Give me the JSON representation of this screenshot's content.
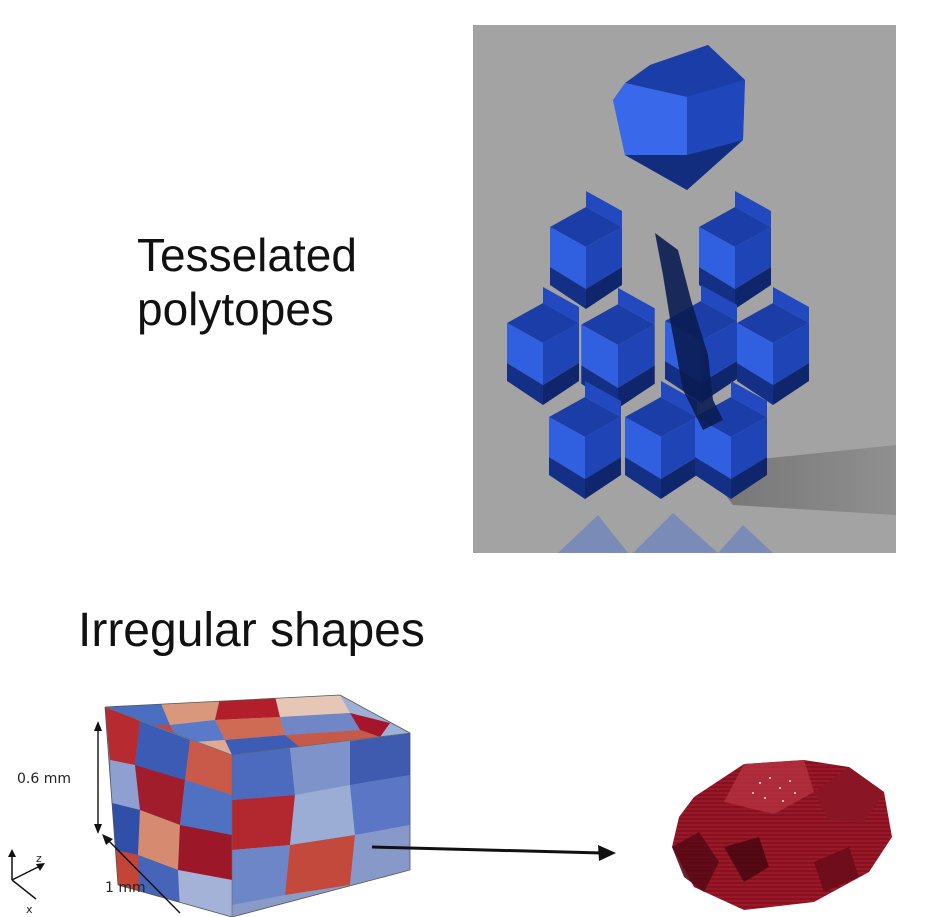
{
  "top_section": {
    "title_line1": "Tesselated",
    "title_line2": "polytopes"
  },
  "bottom_section": {
    "title": "Irregular shapes",
    "dimensions": {
      "height_label": "0.6 mm",
      "width_label": "1 mm"
    },
    "axis_labels": {
      "z": "z",
      "x": "x"
    }
  },
  "colors": {
    "polytope_blue": "#2a55d6",
    "background_gray": "#a3a3a3",
    "grain_red": "#9c1828"
  }
}
